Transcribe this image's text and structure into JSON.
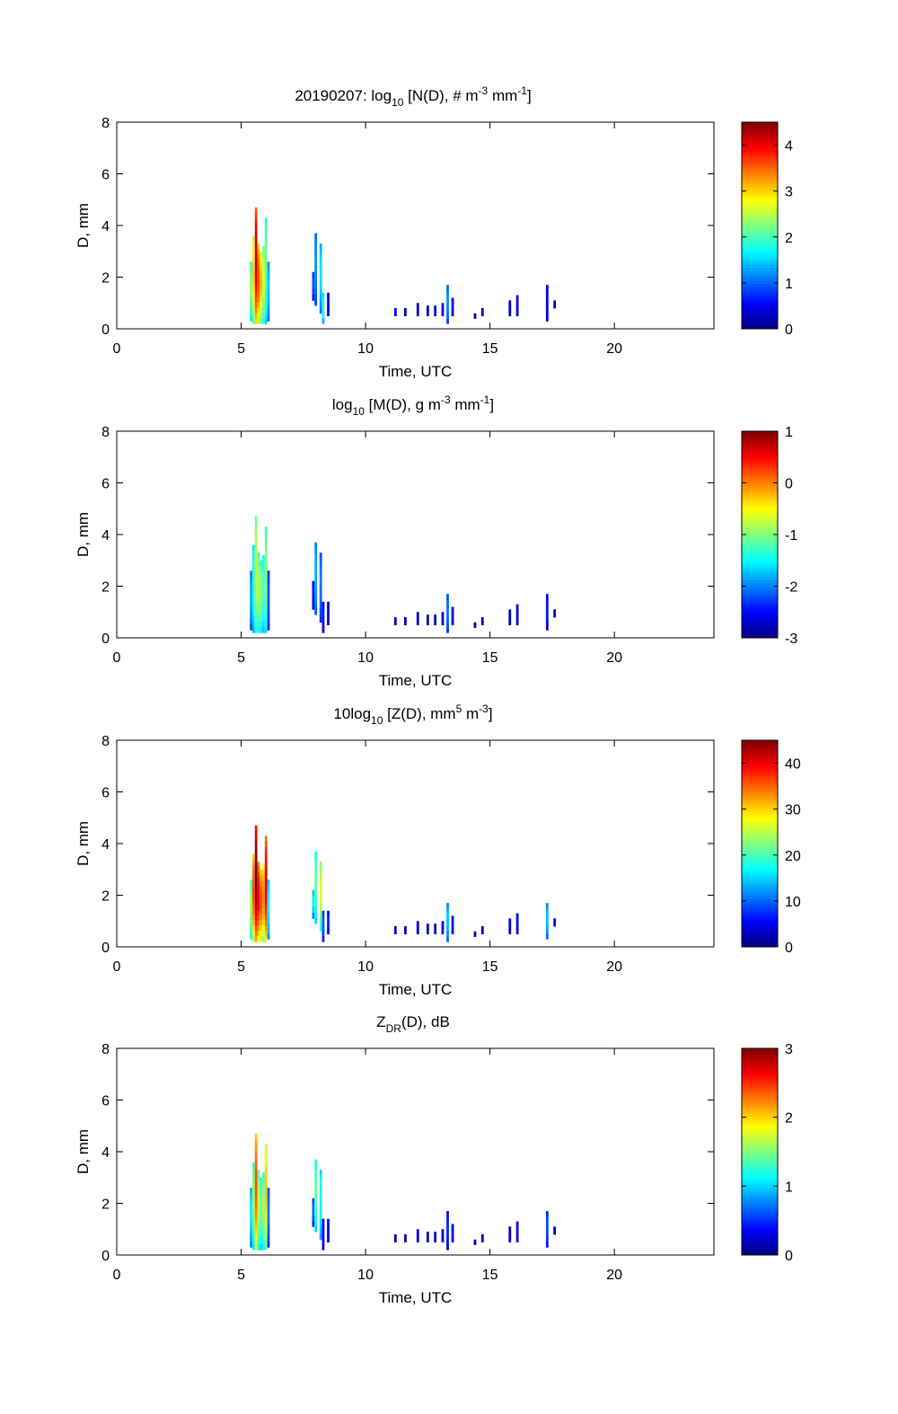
{
  "chart_data": [
    {
      "type": "heatmap",
      "title_parts": {
        "date": "20190207: ",
        "pre": "log",
        "sub": "10",
        "mid": " [N(D), # m",
        "sup1": "-3",
        "mid2": " mm",
        "sup2": "-1",
        "post": "]"
      },
      "xlabel": "Time, UTC",
      "ylabel": "D, mm",
      "xlim": [
        0,
        24
      ],
      "ylim": [
        0,
        8
      ],
      "xticks": [
        0,
        5,
        10,
        15,
        20
      ],
      "yticks": [
        0,
        2,
        4,
        6,
        8
      ],
      "colorbar": {
        "min": 0,
        "max": 4.5,
        "ticks": [
          0,
          1,
          2,
          3,
          4
        ],
        "colormap": "jet"
      },
      "cells": [
        {
          "t": 5.4,
          "d": [
            0.3,
            2.6
          ],
          "v": 1.9
        },
        {
          "t": 5.5,
          "d": [
            0.2,
            3.6
          ],
          "v": 2.5
        },
        {
          "t": 5.6,
          "d": [
            0.2,
            4.7
          ],
          "v": 3.5
        },
        {
          "t": 5.7,
          "d": [
            0.2,
            3.3
          ],
          "v": 3.0
        },
        {
          "t": 5.8,
          "d": [
            0.2,
            3.0
          ],
          "v": 2.6
        },
        {
          "t": 5.9,
          "d": [
            0.2,
            3.2
          ],
          "v": 2.2
        },
        {
          "t": 6.0,
          "d": [
            0.2,
            4.3
          ],
          "v": 1.8
        },
        {
          "t": 6.1,
          "d": [
            0.3,
            2.6
          ],
          "v": 1.2
        },
        {
          "t": 7.9,
          "d": [
            1.1,
            2.2
          ],
          "v": 0.8
        },
        {
          "t": 8.0,
          "d": [
            0.9,
            3.7
          ],
          "v": 1.0
        },
        {
          "t": 8.2,
          "d": [
            0.6,
            3.3
          ],
          "v": 1.3
        },
        {
          "t": 8.3,
          "d": [
            0.2,
            1.4
          ],
          "v": 1.6
        },
        {
          "t": 8.5,
          "d": [
            0.5,
            1.4
          ],
          "v": 0.5
        },
        {
          "t": 11.2,
          "d": [
            0.5,
            0.8
          ],
          "v": 0.3
        },
        {
          "t": 11.6,
          "d": [
            0.5,
            0.8
          ],
          "v": 0.3
        },
        {
          "t": 12.1,
          "d": [
            0.5,
            1.0
          ],
          "v": 0.4
        },
        {
          "t": 12.5,
          "d": [
            0.5,
            0.9
          ],
          "v": 0.3
        },
        {
          "t": 12.8,
          "d": [
            0.5,
            0.9
          ],
          "v": 0.3
        },
        {
          "t": 13.1,
          "d": [
            0.5,
            1.0
          ],
          "v": 0.6
        },
        {
          "t": 13.3,
          "d": [
            0.2,
            1.7
          ],
          "v": 1.0
        },
        {
          "t": 13.5,
          "d": [
            0.5,
            1.2
          ],
          "v": 0.5
        },
        {
          "t": 14.4,
          "d": [
            0.4,
            0.6
          ],
          "v": 0.3
        },
        {
          "t": 14.7,
          "d": [
            0.5,
            0.8
          ],
          "v": 0.3
        },
        {
          "t": 15.8,
          "d": [
            0.5,
            1.1
          ],
          "v": 0.3
        },
        {
          "t": 16.1,
          "d": [
            0.5,
            1.3
          ],
          "v": 0.4
        },
        {
          "t": 17.3,
          "d": [
            0.3,
            1.7
          ],
          "v": 0.4
        },
        {
          "t": 17.6,
          "d": [
            0.8,
            1.1
          ],
          "v": 0.3
        }
      ]
    },
    {
      "type": "heatmap",
      "title_parts": {
        "date": "",
        "pre": "log",
        "sub": "10",
        "mid": " [M(D), g m",
        "sup1": "-3",
        "mid2": " mm",
        "sup2": "-1",
        "post": "]"
      },
      "xlabel": "Time, UTC",
      "ylabel": "D, mm",
      "xlim": [
        0,
        24
      ],
      "ylim": [
        0,
        8
      ],
      "xticks": [
        0,
        5,
        10,
        15,
        20
      ],
      "yticks": [
        0,
        2,
        4,
        6,
        8
      ],
      "colorbar": {
        "min": -3,
        "max": 1,
        "ticks": [
          -3,
          -2,
          -1,
          0,
          1
        ],
        "colormap": "jet"
      },
      "cells": [
        {
          "t": 5.4,
          "d": [
            0.3,
            2.6
          ],
          "v": -2.0
        },
        {
          "t": 5.5,
          "d": [
            0.2,
            3.6
          ],
          "v": -1.6
        },
        {
          "t": 5.6,
          "d": [
            0.2,
            4.7
          ],
          "v": -1.1
        },
        {
          "t": 5.7,
          "d": [
            0.2,
            3.3
          ],
          "v": -1.2
        },
        {
          "t": 5.8,
          "d": [
            0.2,
            3.0
          ],
          "v": -1.3
        },
        {
          "t": 5.9,
          "d": [
            0.2,
            3.2
          ],
          "v": -1.5
        },
        {
          "t": 6.0,
          "d": [
            0.2,
            4.3
          ],
          "v": -1.3
        },
        {
          "t": 6.1,
          "d": [
            0.3,
            2.6
          ],
          "v": -2.3
        },
        {
          "t": 7.9,
          "d": [
            1.1,
            2.2
          ],
          "v": -2.5
        },
        {
          "t": 8.0,
          "d": [
            0.9,
            3.7
          ],
          "v": -2.0
        },
        {
          "t": 8.2,
          "d": [
            0.6,
            3.3
          ],
          "v": -2.2
        },
        {
          "t": 8.3,
          "d": [
            0.2,
            1.4
          ],
          "v": -2.5
        },
        {
          "t": 8.5,
          "d": [
            0.5,
            1.4
          ],
          "v": -2.7
        },
        {
          "t": 11.2,
          "d": [
            0.5,
            0.8
          ],
          "v": -2.8
        },
        {
          "t": 11.6,
          "d": [
            0.5,
            0.8
          ],
          "v": -2.8
        },
        {
          "t": 12.1,
          "d": [
            0.5,
            1.0
          ],
          "v": -2.7
        },
        {
          "t": 12.5,
          "d": [
            0.5,
            0.9
          ],
          "v": -2.8
        },
        {
          "t": 12.8,
          "d": [
            0.5,
            0.9
          ],
          "v": -2.8
        },
        {
          "t": 13.1,
          "d": [
            0.5,
            1.0
          ],
          "v": -2.6
        },
        {
          "t": 13.3,
          "d": [
            0.2,
            1.7
          ],
          "v": -2.2
        },
        {
          "t": 13.5,
          "d": [
            0.5,
            1.2
          ],
          "v": -2.6
        },
        {
          "t": 14.4,
          "d": [
            0.4,
            0.6
          ],
          "v": -2.8
        },
        {
          "t": 14.7,
          "d": [
            0.5,
            0.8
          ],
          "v": -2.8
        },
        {
          "t": 15.8,
          "d": [
            0.5,
            1.1
          ],
          "v": -2.8
        },
        {
          "t": 16.1,
          "d": [
            0.5,
            1.3
          ],
          "v": -2.7
        },
        {
          "t": 17.3,
          "d": [
            0.3,
            1.7
          ],
          "v": -2.5
        },
        {
          "t": 17.6,
          "d": [
            0.8,
            1.1
          ],
          "v": -2.8
        }
      ]
    },
    {
      "type": "heatmap",
      "title_parts": {
        "date": "",
        "pre": "10log",
        "sub": "10",
        "mid": " [Z(D),  mm",
        "sup1": "5",
        "mid2": " m",
        "sup2": "-3",
        "post": "]"
      },
      "xlabel": "Time, UTC",
      "ylabel": "D, mm",
      "xlim": [
        0,
        24
      ],
      "ylim": [
        0,
        8
      ],
      "xticks": [
        0,
        5,
        10,
        15,
        20
      ],
      "yticks": [
        0,
        2,
        4,
        6,
        8
      ],
      "colorbar": {
        "min": 0,
        "max": 45,
        "ticks": [
          0,
          10,
          20,
          30,
          40
        ],
        "colormap": "jet"
      },
      "cells": [
        {
          "t": 5.4,
          "d": [
            0.3,
            2.6
          ],
          "v": 20
        },
        {
          "t": 5.5,
          "d": [
            0.2,
            3.6
          ],
          "v": 30
        },
        {
          "t": 5.6,
          "d": [
            0.2,
            4.7
          ],
          "v": 38
        },
        {
          "t": 5.7,
          "d": [
            0.2,
            3.3
          ],
          "v": 33
        },
        {
          "t": 5.8,
          "d": [
            0.2,
            3.0
          ],
          "v": 30
        },
        {
          "t": 5.9,
          "d": [
            0.2,
            3.2
          ],
          "v": 28
        },
        {
          "t": 6.0,
          "d": [
            0.2,
            4.3
          ],
          "v": 34
        },
        {
          "t": 6.1,
          "d": [
            0.3,
            2.6
          ],
          "v": 14
        },
        {
          "t": 7.9,
          "d": [
            1.1,
            2.2
          ],
          "v": 14
        },
        {
          "t": 8.0,
          "d": [
            0.9,
            3.7
          ],
          "v": 18
        },
        {
          "t": 8.2,
          "d": [
            0.6,
            3.3
          ],
          "v": 22
        },
        {
          "t": 8.3,
          "d": [
            0.2,
            1.4
          ],
          "v": 8
        },
        {
          "t": 8.5,
          "d": [
            0.5,
            1.4
          ],
          "v": 6
        },
        {
          "t": 11.2,
          "d": [
            0.5,
            0.8
          ],
          "v": 3
        },
        {
          "t": 11.6,
          "d": [
            0.5,
            0.8
          ],
          "v": 3
        },
        {
          "t": 12.1,
          "d": [
            0.5,
            1.0
          ],
          "v": 4
        },
        {
          "t": 12.5,
          "d": [
            0.5,
            0.9
          ],
          "v": 3
        },
        {
          "t": 12.8,
          "d": [
            0.5,
            0.9
          ],
          "v": 3
        },
        {
          "t": 13.1,
          "d": [
            0.5,
            1.0
          ],
          "v": 5
        },
        {
          "t": 13.3,
          "d": [
            0.2,
            1.7
          ],
          "v": 12
        },
        {
          "t": 13.5,
          "d": [
            0.5,
            1.2
          ],
          "v": 5
        },
        {
          "t": 14.4,
          "d": [
            0.4,
            0.6
          ],
          "v": 2
        },
        {
          "t": 14.7,
          "d": [
            0.5,
            0.8
          ],
          "v": 3
        },
        {
          "t": 15.8,
          "d": [
            0.5,
            1.1
          ],
          "v": 4
        },
        {
          "t": 16.1,
          "d": [
            0.5,
            1.3
          ],
          "v": 5
        },
        {
          "t": 17.3,
          "d": [
            0.3,
            1.7
          ],
          "v": 12
        },
        {
          "t": 17.6,
          "d": [
            0.8,
            1.1
          ],
          "v": 4
        }
      ]
    },
    {
      "type": "heatmap",
      "title_parts": {
        "date": "",
        "pre": "Z",
        "sub": "DR",
        "mid": "(D), dB",
        "sup1": "",
        "mid2": "",
        "sup2": "",
        "post": ""
      },
      "xlabel": "Time, UTC",
      "ylabel": "D, mm",
      "xlim": [
        0,
        24
      ],
      "ylim": [
        0,
        8
      ],
      "xticks": [
        0,
        5,
        10,
        15,
        20
      ],
      "yticks": [
        0,
        2,
        4,
        6,
        8
      ],
      "colorbar": {
        "min": 0,
        "max": 3,
        "ticks": [
          0,
          1,
          2,
          3
        ],
        "colormap": "jet"
      },
      "cells": [
        {
          "t": 5.4,
          "d": [
            0.3,
            2.6
          ],
          "v": 0.9
        },
        {
          "t": 5.5,
          "d": [
            0.2,
            3.6
          ],
          "v": 1.3
        },
        {
          "t": 5.6,
          "d": [
            0.2,
            4.7
          ],
          "v": 2.0
        },
        {
          "t": 5.7,
          "d": [
            0.2,
            3.3
          ],
          "v": 1.4
        },
        {
          "t": 5.8,
          "d": [
            0.2,
            3.0
          ],
          "v": 1.2
        },
        {
          "t": 5.9,
          "d": [
            0.2,
            3.2
          ],
          "v": 1.3
        },
        {
          "t": 6.0,
          "d": [
            0.2,
            4.3
          ],
          "v": 1.7
        },
        {
          "t": 6.1,
          "d": [
            0.3,
            2.6
          ],
          "v": 0.6
        },
        {
          "t": 7.9,
          "d": [
            1.1,
            2.2
          ],
          "v": 0.6
        },
        {
          "t": 8.0,
          "d": [
            0.9,
            3.7
          ],
          "v": 1.2
        },
        {
          "t": 8.2,
          "d": [
            0.6,
            3.3
          ],
          "v": 1.0
        },
        {
          "t": 8.3,
          "d": [
            0.2,
            1.4
          ],
          "v": 0.3
        },
        {
          "t": 8.5,
          "d": [
            0.5,
            1.4
          ],
          "v": 0.3
        },
        {
          "t": 11.2,
          "d": [
            0.5,
            0.8
          ],
          "v": 0.2
        },
        {
          "t": 11.6,
          "d": [
            0.5,
            0.8
          ],
          "v": 0.2
        },
        {
          "t": 12.1,
          "d": [
            0.5,
            1.0
          ],
          "v": 0.3
        },
        {
          "t": 12.5,
          "d": [
            0.5,
            0.9
          ],
          "v": 0.2
        },
        {
          "t": 12.8,
          "d": [
            0.5,
            0.9
          ],
          "v": 0.2
        },
        {
          "t": 13.1,
          "d": [
            0.5,
            1.0
          ],
          "v": 0.3
        },
        {
          "t": 13.3,
          "d": [
            0.2,
            1.7
          ],
          "v": 0.4
        },
        {
          "t": 13.5,
          "d": [
            0.5,
            1.2
          ],
          "v": 0.3
        },
        {
          "t": 14.4,
          "d": [
            0.4,
            0.6
          ],
          "v": 0.2
        },
        {
          "t": 14.7,
          "d": [
            0.5,
            0.8
          ],
          "v": 0.2
        },
        {
          "t": 15.8,
          "d": [
            0.5,
            1.1
          ],
          "v": 0.2
        },
        {
          "t": 16.1,
          "d": [
            0.5,
            1.3
          ],
          "v": 0.3
        },
        {
          "t": 17.3,
          "d": [
            0.3,
            1.7
          ],
          "v": 0.5
        },
        {
          "t": 17.6,
          "d": [
            0.8,
            1.1
          ],
          "v": 0.2
        }
      ]
    }
  ]
}
